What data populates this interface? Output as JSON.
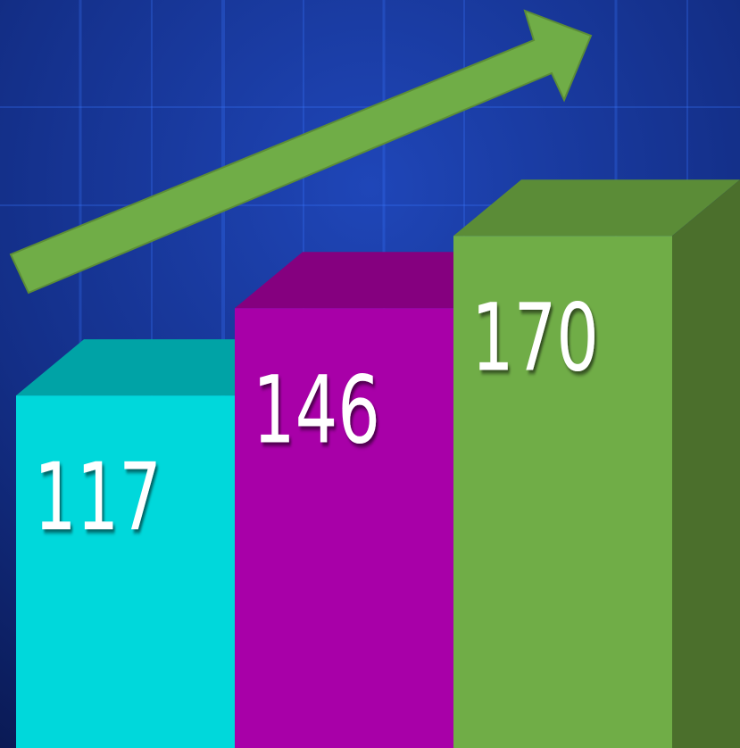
{
  "chart_data": {
    "type": "bar3d",
    "values": [
      117,
      146,
      170
    ],
    "colors": [
      "#00d8db",
      "#a800a8",
      "#70ad47"
    ],
    "top_colors": [
      "#00a3a6",
      "#85007f",
      "#5b8c37"
    ],
    "side_colors": [
      "#008a8c",
      "#6f006b",
      "#4b6f2c"
    ]
  }
}
